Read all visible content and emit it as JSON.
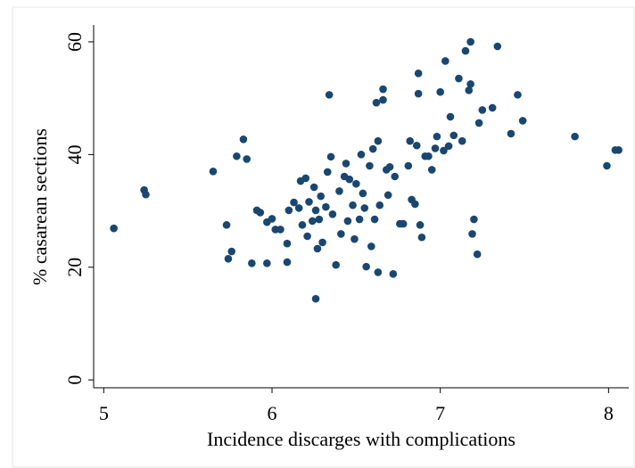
{
  "chart_data": {
    "type": "scatter",
    "x_label": "Incidence discarges with complications",
    "y_label": "% casarean sections",
    "color": "#1a476f",
    "xlim": [
      4.94,
      8.12
    ],
    "ylim": [
      -1.4,
      63
    ],
    "xticks": [
      5,
      6,
      7,
      8
    ],
    "yticks": [
      0,
      20,
      40,
      60
    ],
    "grid": false,
    "x": [
      5.06,
      5.24,
      5.25,
      5.65,
      5.73,
      5.74,
      5.76,
      5.79,
      5.83,
      5.85,
      5.88,
      5.91,
      5.93,
      5.97,
      5.97,
      6.0,
      6.02,
      6.05,
      6.09,
      6.09,
      6.1,
      6.13,
      6.16,
      6.17,
      6.18,
      6.2,
      6.21,
      6.22,
      6.24,
      6.25,
      6.26,
      6.27,
      6.28,
      6.26,
      6.29,
      6.3,
      6.32,
      6.33,
      6.34,
      6.35,
      6.36,
      6.38,
      6.4,
      6.41,
      6.43,
      6.44,
      6.45,
      6.46,
      6.48,
      6.49,
      6.5,
      6.52,
      6.53,
      6.54,
      6.55,
      6.56,
      6.58,
      6.59,
      6.6,
      6.61,
      6.62,
      6.63,
      6.63,
      6.64,
      6.66,
      6.66,
      6.68,
      6.69,
      6.7,
      6.72,
      6.73,
      6.76,
      6.78,
      6.81,
      6.82,
      6.83,
      6.85,
      6.86,
      6.87,
      6.87,
      6.88,
      6.89,
      6.91,
      6.93,
      6.95,
      6.97,
      6.98,
      7.0,
      7.02,
      7.03,
      7.05,
      7.06,
      7.08,
      7.11,
      7.13,
      7.15,
      7.17,
      7.18,
      7.18,
      7.19,
      7.2,
      7.22,
      7.23,
      7.25,
      7.31,
      7.34,
      7.42,
      7.46,
      7.49,
      7.8,
      7.99,
      8.04,
      8.06
    ],
    "y": [
      26.9,
      33.7,
      32.9,
      37.0,
      27.5,
      21.5,
      22.8,
      39.7,
      42.7,
      39.2,
      20.7,
      30.1,
      29.7,
      20.7,
      28.0,
      28.6,
      26.7,
      26.7,
      20.9,
      24.2,
      30.1,
      31.5,
      30.5,
      35.3,
      27.5,
      35.8,
      25.5,
      31.6,
      28.2,
      34.2,
      30.1,
      23.3,
      28.5,
      14.4,
      32.6,
      24.4,
      30.7,
      36.9,
      50.6,
      39.6,
      29.4,
      20.4,
      33.5,
      25.9,
      36.1,
      38.4,
      28.2,
      35.6,
      31.0,
      25.0,
      34.8,
      28.5,
      40.0,
      33.1,
      30.5,
      20.1,
      38.0,
      23.7,
      41.0,
      28.5,
      49.2,
      19.1,
      42.4,
      31.0,
      49.7,
      51.6,
      37.3,
      32.8,
      37.8,
      18.8,
      36.1,
      27.7,
      27.7,
      38.0,
      42.4,
      32.0,
      31.2,
      41.6,
      54.4,
      50.8,
      27.5,
      25.3,
      39.7,
      39.7,
      37.3,
      41.1,
      43.2,
      51.1,
      40.7,
      56.6,
      41.5,
      46.7,
      43.4,
      53.5,
      42.4,
      58.4,
      51.4,
      52.5,
      60.0,
      25.9,
      28.5,
      22.3,
      45.6,
      47.9,
      48.3,
      59.2,
      43.7,
      50.6,
      46.0,
      43.2,
      38.0,
      40.8,
      40.8
    ]
  }
}
